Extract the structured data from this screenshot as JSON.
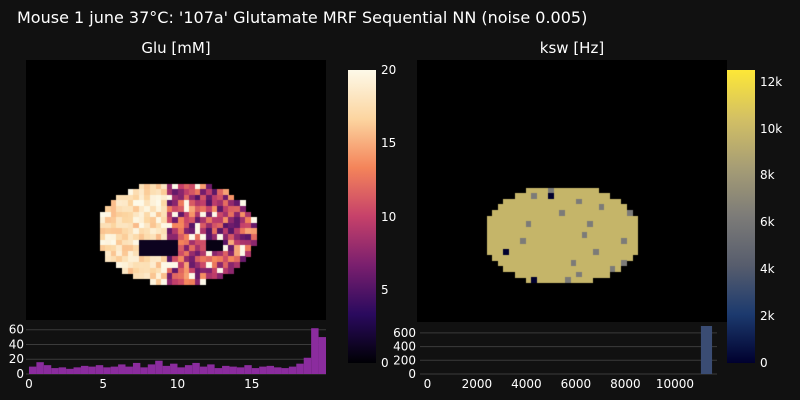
{
  "title": "Mouse 1 june 37°C: '107a' Glutamate MRF Sequential NN (noise 0.005)",
  "panels": [
    {
      "title": "Glu [mM]",
      "colorbar": {
        "min": 0,
        "max": 20,
        "ticks": [
          "20",
          "15",
          "10",
          "5",
          "0"
        ],
        "tick_values": [
          20,
          15,
          10,
          5,
          0
        ],
        "colors": [
          "#000004",
          "#2a0a5e",
          "#7a1f6e",
          "#c6416a",
          "#f4845a",
          "#fcd5a0",
          "#fdf9e8"
        ]
      }
    },
    {
      "title": "ksw [Hz]",
      "colorbar": {
        "min": 0,
        "max": 12500,
        "ticks": [
          "12k",
          "10k",
          "8k",
          "6k",
          "4k",
          "2k",
          "0"
        ],
        "tick_values": [
          12000,
          10000,
          8000,
          6000,
          4000,
          2000,
          0
        ],
        "colors": [
          "#00002e",
          "#1c3a6e",
          "#575d6d",
          "#7c7b78",
          "#a69d75",
          "#d3c064",
          "#fde737"
        ]
      }
    }
  ],
  "chart_data": [
    {
      "type": "bar",
      "title": "",
      "xlim": [
        -0.2,
        20
      ],
      "ylim": [
        0,
        65
      ],
      "x_ticks": [
        "0",
        "5",
        "10",
        "15"
      ],
      "x_tick_values": [
        0,
        5,
        10,
        15
      ],
      "y_ticks": [
        "60",
        "40",
        "20",
        "0"
      ],
      "y_tick_values": [
        60,
        40,
        20,
        0
      ],
      "bar_color": "#8b2c9e",
      "bin_width": 0.5,
      "bin_starts": [
        0,
        0.5,
        1,
        1.5,
        2,
        2.5,
        3,
        3.5,
        4,
        4.5,
        5,
        5.5,
        6,
        6.5,
        7,
        7.5,
        8,
        8.5,
        9,
        9.5,
        10,
        10.5,
        11,
        11.5,
        12,
        12.5,
        13,
        13.5,
        14,
        14.5,
        15,
        15.5,
        16,
        16.5,
        17,
        17.5,
        18,
        18.5,
        19,
        19.5
      ],
      "values": [
        10,
        16,
        12,
        8,
        9,
        7,
        9,
        11,
        10,
        12,
        9,
        10,
        13,
        10,
        15,
        9,
        13,
        18,
        11,
        14,
        9,
        12,
        15,
        10,
        13,
        8,
        11,
        10,
        9,
        12,
        8,
        10,
        11,
        9,
        8,
        10,
        14,
        22,
        62,
        50
      ]
    },
    {
      "type": "bar",
      "title": "",
      "xlim": [
        -300,
        11700
      ],
      "ylim": [
        0,
        700
      ],
      "x_ticks": [
        "0",
        "2000",
        "4000",
        "6000",
        "8000",
        "10000"
      ],
      "x_tick_values": [
        0,
        2000,
        4000,
        6000,
        8000,
        10000
      ],
      "y_ticks": [
        "600",
        "400",
        "200",
        "0"
      ],
      "y_tick_values": [
        600,
        400,
        200,
        0
      ],
      "bar_color": "#3a4c73",
      "bin_starts": [
        11050
      ],
      "bin_width": 450,
      "values": [
        700
      ]
    }
  ]
}
